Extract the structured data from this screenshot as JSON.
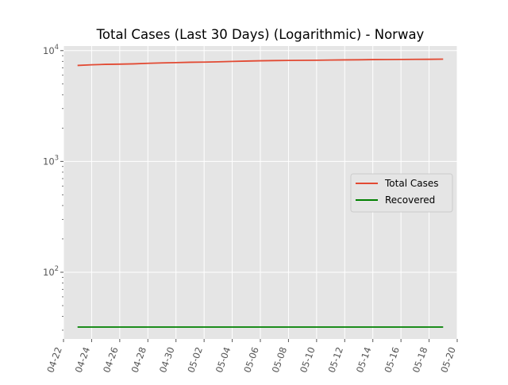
{
  "chart_data": {
    "type": "line",
    "title": "Total Cases (Last 30 Days) (Logarithmic) - Norway",
    "xlabel": "",
    "ylabel": "",
    "y_scale": "log",
    "ylim": [
      25,
      11000
    ],
    "xlim": [
      "04-22",
      "05-20"
    ],
    "x_tick_labels": [
      "04-22",
      "04-24",
      "04-26",
      "04-28",
      "04-30",
      "05-02",
      "05-04",
      "05-06",
      "05-08",
      "05-10",
      "05-12",
      "05-14",
      "05-16",
      "05-18",
      "05-20"
    ],
    "y_tick_labels": [
      {
        "value": 100,
        "base": "10",
        "exp": "2"
      },
      {
        "value": 1000,
        "base": "10",
        "exp": "3"
      },
      {
        "value": 10000,
        "base": "10",
        "exp": "4"
      }
    ],
    "grid": true,
    "legend_position": "center-right",
    "x": [
      "04-23",
      "04-24",
      "04-25",
      "04-26",
      "04-27",
      "04-28",
      "04-29",
      "04-30",
      "05-01",
      "05-02",
      "05-03",
      "05-04",
      "05-05",
      "05-06",
      "05-07",
      "05-08",
      "05-09",
      "05-10",
      "05-11",
      "05-12",
      "05-13",
      "05-14",
      "05-15",
      "05-16",
      "05-17",
      "05-18",
      "05-19"
    ],
    "series": [
      {
        "name": "Total Cases",
        "color": "#e24a33",
        "values": [
          7350,
          7450,
          7520,
          7550,
          7600,
          7680,
          7750,
          7800,
          7850,
          7880,
          7920,
          7990,
          8050,
          8100,
          8130,
          8160,
          8170,
          8190,
          8220,
          8250,
          8270,
          8300,
          8310,
          8330,
          8340,
          8350,
          8380
        ]
      },
      {
        "name": "Recovered",
        "color": "#008000",
        "values": [
          32,
          32,
          32,
          32,
          32,
          32,
          32,
          32,
          32,
          32,
          32,
          32,
          32,
          32,
          32,
          32,
          32,
          32,
          32,
          32,
          32,
          32,
          32,
          32,
          32,
          32,
          32
        ]
      }
    ]
  }
}
